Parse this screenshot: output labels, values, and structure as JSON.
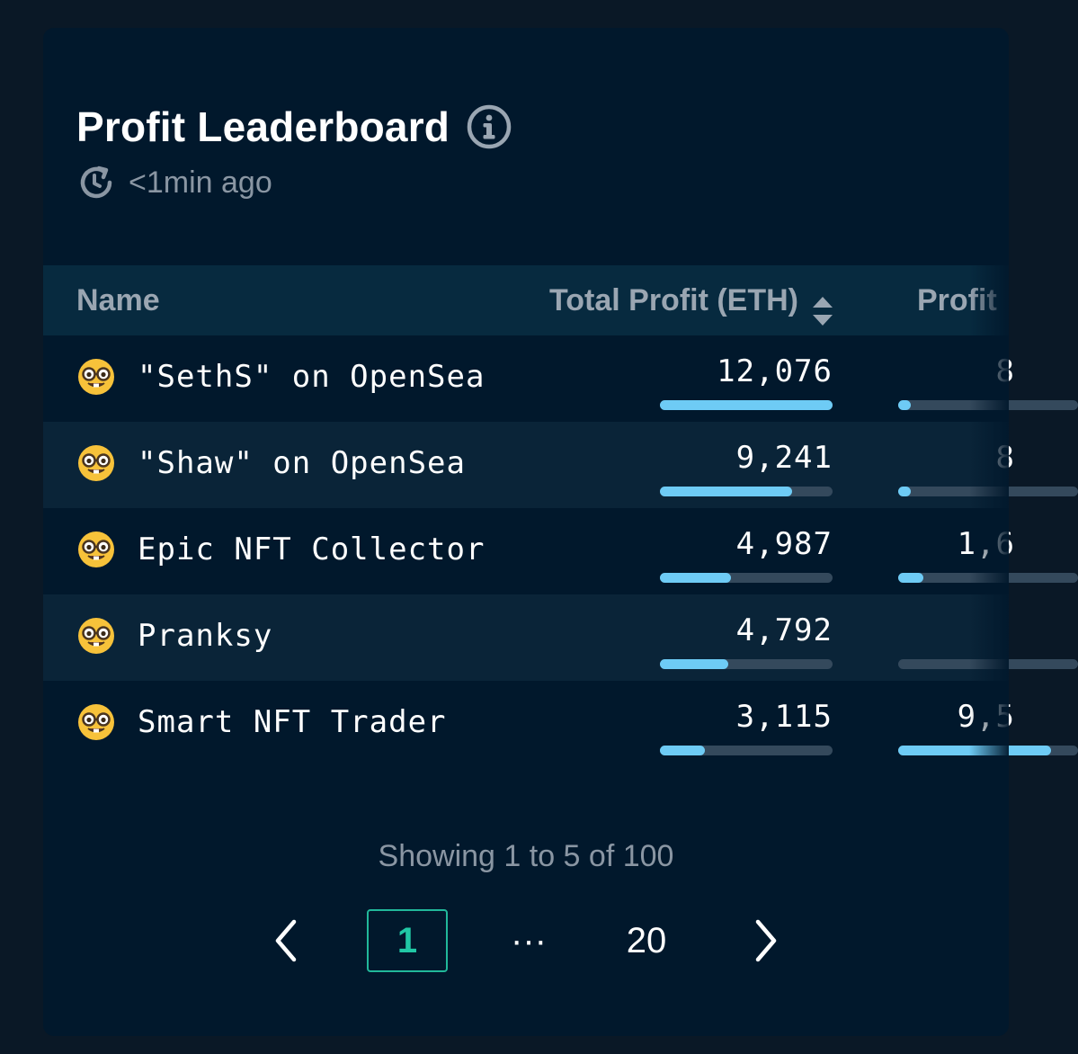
{
  "header": {
    "title": "Profit Leaderboard",
    "info_icon": "info-circle-icon",
    "updated_icon": "clock-refresh-icon",
    "updated": "<1min ago"
  },
  "table": {
    "columns": {
      "name": "Name",
      "total_profit": "Total Profit (ETH)",
      "profit_pct": "Profit"
    },
    "rows": [
      {
        "emoji": "nerd-face-icon",
        "name": "\"SethS\" on OpenSea",
        "total_profit": "12,076",
        "profit_fraction": 1.0,
        "pct_partial": "8",
        "pct_fraction": 0.07
      },
      {
        "emoji": "nerd-face-icon",
        "name": "\"Shaw\" on OpenSea",
        "total_profit": "9,241",
        "profit_fraction": 0.765,
        "pct_partial": "8",
        "pct_fraction": 0.07
      },
      {
        "emoji": "nerd-face-icon",
        "name": "Epic NFT Collector",
        "total_profit": "4,987",
        "profit_fraction": 0.41,
        "pct_partial": "1,6",
        "pct_fraction": 0.14
      },
      {
        "emoji": "nerd-face-icon",
        "name": "Pranksy",
        "total_profit": "4,792",
        "profit_fraction": 0.395,
        "pct_partial": "",
        "pct_fraction": 0.0
      },
      {
        "emoji": "nerd-face-icon",
        "name": "Smart NFT Trader",
        "total_profit": "3,115",
        "profit_fraction": 0.258,
        "pct_partial": "9,5",
        "pct_fraction": 0.85
      }
    ]
  },
  "pagination": {
    "showing": "Showing 1 to 5 of 100",
    "prev_icon": "chevron-left-icon",
    "current": "1",
    "ellipsis": "···",
    "last": "20",
    "next_icon": "chevron-right-icon"
  },
  "colors": {
    "accent": "#21b89a",
    "bar": "#6ecbf5",
    "track": "#34495c"
  }
}
